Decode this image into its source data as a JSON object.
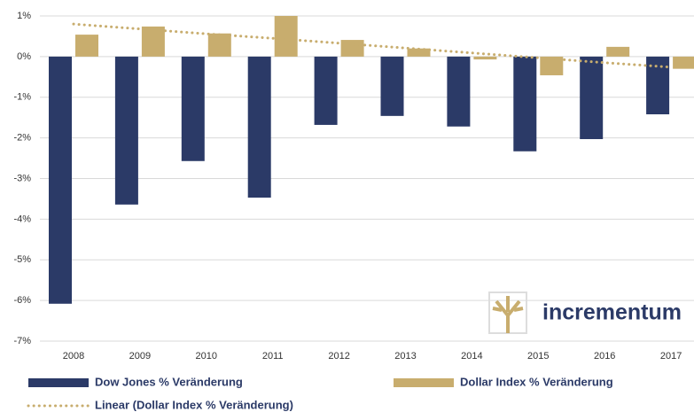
{
  "chart_data": {
    "type": "bar",
    "categories": [
      "2008",
      "2009",
      "2010",
      "2011",
      "2012",
      "2013",
      "2014",
      "2015",
      "2016",
      "2017"
    ],
    "series": [
      {
        "name": "Dow Jones % Veränderung",
        "color": "#2b3a67",
        "values": [
          -6.08,
          -3.64,
          -2.57,
          -3.47,
          -1.68,
          -1.46,
          -1.72,
          -2.33,
          -2.03,
          -1.42
        ]
      },
      {
        "name": "Dollar Index % Veränderung",
        "color": "#c8ad6e",
        "values": [
          0.54,
          0.74,
          0.57,
          1.0,
          0.41,
          0.2,
          -0.07,
          -0.46,
          0.24,
          -0.3
        ]
      },
      {
        "name": "Linear (Dollar Index % Veränderung)",
        "color": "#c8ad6e",
        "type": "line",
        "line_style": "dotted",
        "values": [
          0.8,
          0.68,
          0.56,
          0.45,
          0.33,
          0.21,
          0.09,
          -0.03,
          -0.15,
          -0.26
        ]
      }
    ],
    "ylim": [
      -7,
      1
    ],
    "yticks": [
      {
        "value": 1,
        "label": "1%"
      },
      {
        "value": 0,
        "label": "0%"
      },
      {
        "value": -1,
        "label": "-1%"
      },
      {
        "value": -2,
        "label": "-2%"
      },
      {
        "value": -3,
        "label": "-3%"
      },
      {
        "value": -4,
        "label": "-4%"
      },
      {
        "value": -5,
        "label": "-5%"
      },
      {
        "value": -6,
        "label": "-6%"
      },
      {
        "value": -7,
        "label": "-7%"
      }
    ],
    "grid": true,
    "watermark": "incrementum"
  }
}
